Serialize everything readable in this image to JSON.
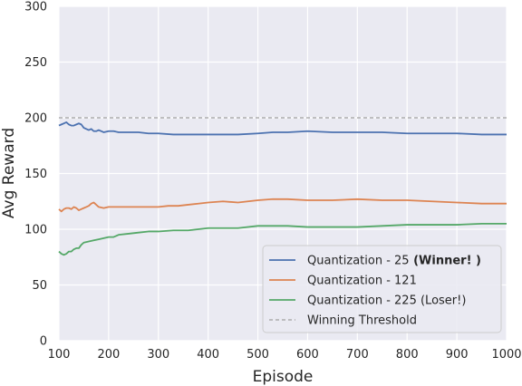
{
  "chart_data": {
    "type": "line",
    "xlabel": "Episode",
    "ylabel": "Avg Reward",
    "xlim": [
      100,
      1000
    ],
    "ylim": [
      0,
      300
    ],
    "x_ticks": [
      100,
      200,
      300,
      400,
      500,
      600,
      700,
      800,
      900,
      1000
    ],
    "y_ticks": [
      0,
      50,
      100,
      150,
      200,
      250,
      300
    ],
    "grid": true,
    "legend_position": "lower-right",
    "series": [
      {
        "name": "Quantization - 25",
        "name_suffix": "(Winner! )",
        "color": "#4c72b0",
        "points": [
          [
            100,
            193
          ],
          [
            105,
            194
          ],
          [
            110,
            195
          ],
          [
            115,
            196
          ],
          [
            120,
            194
          ],
          [
            125,
            193
          ],
          [
            130,
            193
          ],
          [
            135,
            194
          ],
          [
            140,
            195
          ],
          [
            145,
            194
          ],
          [
            150,
            191
          ],
          [
            155,
            190
          ],
          [
            160,
            189
          ],
          [
            165,
            190
          ],
          [
            170,
            188
          ],
          [
            175,
            188
          ],
          [
            180,
            189
          ],
          [
            190,
            187
          ],
          [
            200,
            188
          ],
          [
            210,
            188
          ],
          [
            220,
            187
          ],
          [
            240,
            187
          ],
          [
            260,
            187
          ],
          [
            280,
            186
          ],
          [
            300,
            186
          ],
          [
            330,
            185
          ],
          [
            360,
            185
          ],
          [
            400,
            185
          ],
          [
            430,
            185
          ],
          [
            460,
            185
          ],
          [
            500,
            186
          ],
          [
            530,
            187
          ],
          [
            560,
            187
          ],
          [
            600,
            188
          ],
          [
            650,
            187
          ],
          [
            700,
            187
          ],
          [
            750,
            187
          ],
          [
            800,
            186
          ],
          [
            850,
            186
          ],
          [
            900,
            186
          ],
          [
            950,
            185
          ],
          [
            1000,
            185
          ]
        ]
      },
      {
        "name": "Quantization - 121",
        "color": "#dd8452",
        "points": [
          [
            100,
            118
          ],
          [
            105,
            116
          ],
          [
            110,
            118
          ],
          [
            115,
            119
          ],
          [
            120,
            119
          ],
          [
            125,
            118
          ],
          [
            130,
            120
          ],
          [
            135,
            119
          ],
          [
            140,
            117
          ],
          [
            145,
            118
          ],
          [
            150,
            119
          ],
          [
            155,
            120
          ],
          [
            160,
            121
          ],
          [
            165,
            123
          ],
          [
            170,
            124
          ],
          [
            175,
            122
          ],
          [
            180,
            120
          ],
          [
            190,
            119
          ],
          [
            200,
            120
          ],
          [
            220,
            120
          ],
          [
            240,
            120
          ],
          [
            260,
            120
          ],
          [
            280,
            120
          ],
          [
            300,
            120
          ],
          [
            320,
            121
          ],
          [
            340,
            121
          ],
          [
            360,
            122
          ],
          [
            380,
            123
          ],
          [
            400,
            124
          ],
          [
            430,
            125
          ],
          [
            460,
            124
          ],
          [
            500,
            126
          ],
          [
            530,
            127
          ],
          [
            560,
            127
          ],
          [
            600,
            126
          ],
          [
            650,
            126
          ],
          [
            700,
            127
          ],
          [
            750,
            126
          ],
          [
            800,
            126
          ],
          [
            850,
            125
          ],
          [
            900,
            124
          ],
          [
            950,
            123
          ],
          [
            1000,
            123
          ]
        ]
      },
      {
        "name": "Quantization - 225 (Loser!)",
        "color": "#55a868",
        "points": [
          [
            100,
            80
          ],
          [
            105,
            78
          ],
          [
            110,
            77
          ],
          [
            115,
            78
          ],
          [
            120,
            80
          ],
          [
            125,
            80
          ],
          [
            130,
            82
          ],
          [
            135,
            83
          ],
          [
            140,
            83
          ],
          [
            145,
            86
          ],
          [
            150,
            88
          ],
          [
            160,
            89
          ],
          [
            170,
            90
          ],
          [
            180,
            91
          ],
          [
            190,
            92
          ],
          [
            200,
            93
          ],
          [
            210,
            93
          ],
          [
            220,
            95
          ],
          [
            240,
            96
          ],
          [
            260,
            97
          ],
          [
            280,
            98
          ],
          [
            300,
            98
          ],
          [
            330,
            99
          ],
          [
            360,
            99
          ],
          [
            400,
            101
          ],
          [
            430,
            101
          ],
          [
            460,
            101
          ],
          [
            500,
            103
          ],
          [
            530,
            103
          ],
          [
            560,
            103
          ],
          [
            600,
            102
          ],
          [
            650,
            102
          ],
          [
            700,
            102
          ],
          [
            750,
            103
          ],
          [
            800,
            104
          ],
          [
            850,
            104
          ],
          [
            900,
            104
          ],
          [
            950,
            105
          ],
          [
            1000,
            105
          ]
        ]
      },
      {
        "name": "Winning Threshold",
        "color": "#a0a0a0",
        "dashed": true,
        "points": [
          [
            100,
            200
          ],
          [
            1000,
            200
          ]
        ]
      }
    ]
  }
}
